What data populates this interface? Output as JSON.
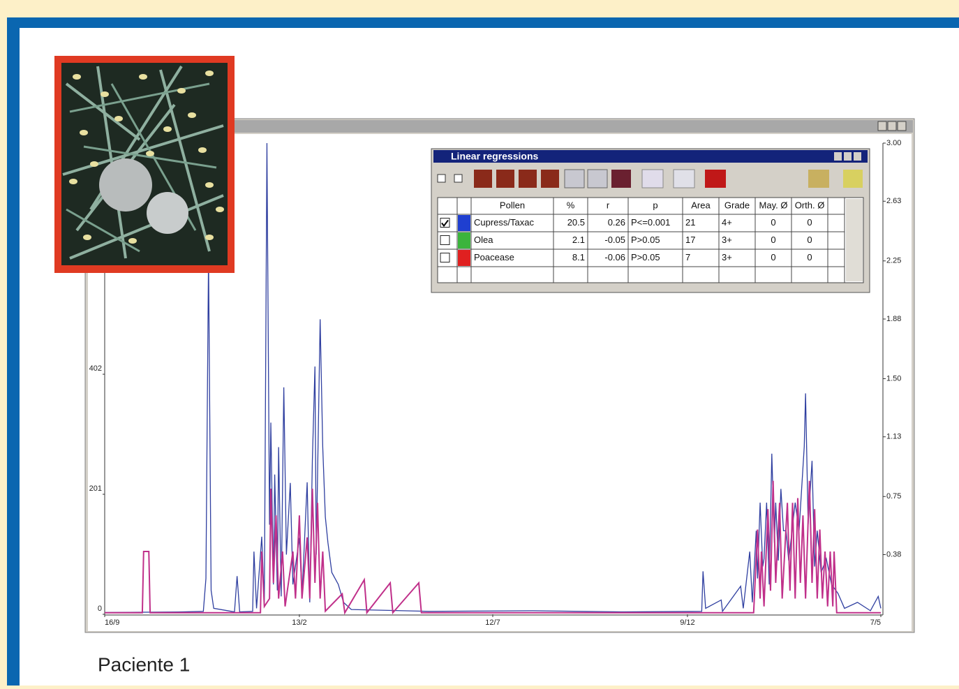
{
  "chart_data": {
    "type": "line",
    "series": [
      {
        "color": "#2f3fa0",
        "axis": "y",
        "x": [
          0,
          60,
          76,
          78,
          80,
          82,
          84,
          100,
          102,
          104,
          114,
          115,
          117,
          121,
          123,
          125,
          127,
          128,
          130,
          131,
          133,
          134,
          136,
          138,
          140,
          141,
          143,
          145,
          150,
          152,
          156,
          158,
          160,
          162,
          163,
          166,
          168,
          170,
          172,
          175,
          180,
          184,
          190,
          250,
          330,
          400,
          460,
          461,
          463,
          475,
          476,
          490,
          492,
          497,
          499,
          502,
          503,
          505,
          507,
          508,
          510,
          512,
          514,
          516,
          517,
          519,
          521,
          523,
          525,
          527,
          532,
          535,
          539,
          540,
          542,
          545,
          547,
          549,
          552,
          556,
          560,
          565,
          570,
          580,
          590,
          596,
          598
        ],
        "values": [
          3,
          4,
          5,
          60,
          600,
          40,
          10,
          4,
          64,
          4,
          5,
          105,
          10,
          130,
          20,
          789,
          150,
          321,
          50,
          234,
          40,
          280,
          30,
          380,
          100,
          140,
          220,
          50,
          128,
          30,
          221,
          20,
          257,
          415,
          100,
          494,
          280,
          163,
          120,
          70,
          50,
          20,
          8,
          5,
          6,
          4,
          5,
          72,
          10,
          24,
          5,
          47,
          10,
          105,
          20,
          140,
          60,
          187,
          80,
          93,
          187,
          50,
          269,
          120,
          187,
          90,
          210,
          140,
          140,
          90,
          187,
          140,
          281,
          370,
          150,
          257,
          80,
          140,
          70,
          93,
          50,
          35,
          10,
          20,
          6,
          30,
          10
        ]
      },
      {
        "color": "#c0308a",
        "axis": "y2",
        "x": [
          0,
          29,
          30,
          34,
          35,
          120,
          121,
          123,
          127,
          128,
          130,
          132,
          134,
          137,
          139,
          145,
          147,
          150,
          152,
          156,
          158,
          160,
          162,
          164,
          166,
          168,
          170,
          183,
          185,
          200,
          202,
          220,
          222,
          242,
          244,
          500,
          503,
          505,
          506,
          508,
          511,
          513,
          515,
          517,
          520,
          522,
          526,
          528,
          530,
          532,
          534,
          536,
          538,
          540,
          543,
          545,
          547,
          549,
          551,
          553,
          555,
          557,
          559,
          561,
          562,
          564,
          598
        ],
        "values": [
          0.01,
          0.01,
          0.4,
          0.4,
          0.01,
          0.01,
          0.4,
          0.05,
          0.1,
          0.8,
          0.2,
          0.63,
          0.1,
          0.4,
          0.05,
          0.4,
          0.1,
          0.63,
          0.1,
          0.49,
          0.1,
          0.8,
          0.2,
          0.71,
          0.1,
          0.4,
          0.02,
          0.13,
          0.01,
          0.22,
          0.01,
          0.2,
          0.01,
          0.2,
          0.01,
          0.01,
          0.54,
          0.1,
          0.4,
          0.05,
          0.67,
          0.15,
          0.85,
          0.2,
          0.71,
          0.1,
          0.71,
          0.15,
          0.71,
          0.1,
          0.74,
          0.2,
          0.63,
          0.1,
          0.85,
          0.2,
          0.67,
          0.1,
          0.54,
          0.1,
          0.4,
          0.05,
          0.4,
          0.05,
          0.4,
          0.01,
          0.01
        ]
      }
    ],
    "xlim": [
      0,
      598
    ],
    "xticks": [
      {
        "value": 0,
        "label": "16/9"
      },
      {
        "value": 150,
        "label": "13/2"
      },
      {
        "value": 299,
        "label": "12/7"
      },
      {
        "value": 449,
        "label": "9/12"
      },
      {
        "value": 598,
        "label": "7/5"
      }
    ],
    "ylim": [
      0,
      789
    ],
    "yticks": [
      0,
      201,
      402
    ],
    "y2lim": [
      0,
      3
    ],
    "y2ticks": [
      0.38,
      0.75,
      1.13,
      {
        "value": 1.5,
        "label": "1.50"
      },
      1.88,
      2.25,
      2.63,
      {
        "value": 3,
        "label": "3.00"
      }
    ]
  },
  "regressions": {
    "title": "Linear regressions",
    "columns": [
      "Pollen",
      "%",
      "r",
      "p",
      "Area",
      "Grade",
      "May. Ø",
      "Orth. Ø"
    ],
    "rows": [
      {
        "checked": true,
        "color": "#1f3fd0",
        "cells": [
          "Cupress/Taxac",
          20.5,
          0.26,
          "P<=0.001",
          21,
          "4+",
          0,
          0
        ]
      },
      {
        "checked": false,
        "color": "#3cb43c",
        "cells": [
          "Olea",
          2.1,
          -0.05,
          "P>0.05",
          17,
          "3+",
          0,
          0
        ]
      },
      {
        "checked": false,
        "color": "#e02020",
        "cells": [
          "Poacease",
          8.1,
          -0.06,
          "P>0.05",
          7,
          "3+",
          0,
          0
        ]
      }
    ]
  },
  "caption": "Paciente 1"
}
